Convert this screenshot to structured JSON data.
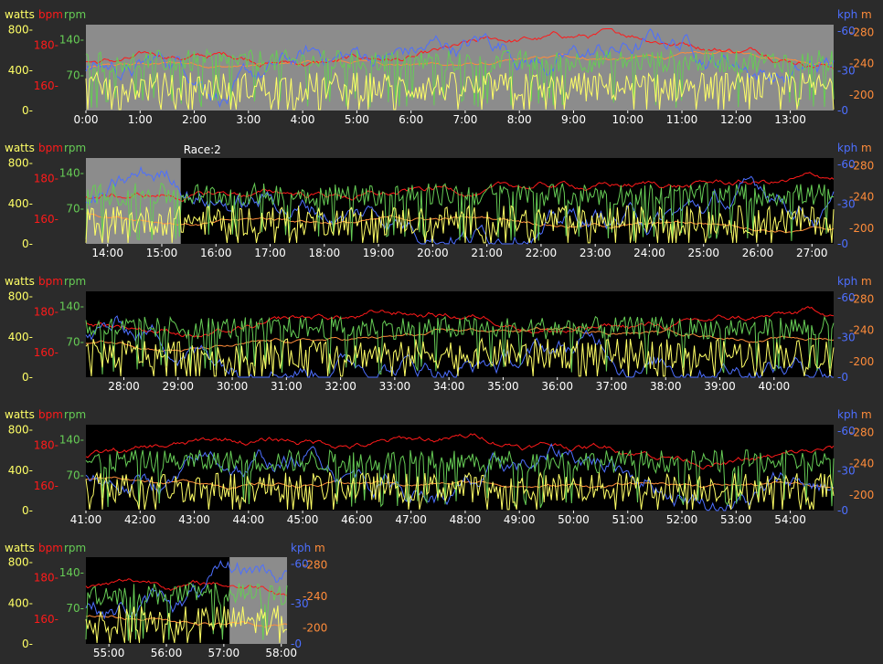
{
  "axis_headers": {
    "watts": "watts",
    "bpm": "bpm",
    "rpm": "rpm",
    "kph": "kph",
    "m": "m"
  },
  "left_ticks": {
    "watts": [
      "800-",
      "400-",
      "0-"
    ],
    "bpm": [
      "180-",
      "160-"
    ],
    "rpm": [
      "140-",
      "70-"
    ]
  },
  "right_ticks": {
    "kph": [
      "-60",
      "-30",
      "-0"
    ],
    "m": [
      "-280",
      "-240",
      "-200"
    ]
  },
  "colors": {
    "watts": "#ffff66",
    "bpm": "#ff1a1a",
    "rpm": "#66cc55",
    "kph": "#4d6fff",
    "m": "#ff8c3a",
    "background": "#2b2b2b",
    "plot_black": "#000000",
    "plot_gray": "#8c8c8c",
    "text": "#ffffff"
  },
  "chart_data": [
    {
      "type": "line",
      "panel": 1,
      "title": "",
      "x_range_min": [
        0,
        13.8
      ],
      "x_tick_labels": [
        "0:00",
        "1:00",
        "2:00",
        "3:00",
        "4:00",
        "5:00",
        "6:00",
        "7:00",
        "8:00",
        "9:00",
        "10:00",
        "11:00",
        "12:00",
        "13:00"
      ],
      "x_tick_values": [
        0,
        1,
        2,
        3,
        4,
        5,
        6,
        7,
        8,
        9,
        10,
        11,
        12,
        13
      ],
      "annotation": "",
      "series_names": [
        "watts",
        "bpm",
        "rpm",
        "kph",
        "m"
      ],
      "shaded_ranges": [
        [
          0,
          13.8
        ]
      ],
      "ylim": {
        "watts": [
          0,
          850
        ],
        "bpm": [
          148,
          190
        ],
        "rpm": [
          0,
          170
        ],
        "kph": [
          0,
          65
        ],
        "m": [
          180,
          290
        ]
      }
    },
    {
      "type": "line",
      "panel": 2,
      "title": "",
      "x_range_min": [
        13.6,
        27.4
      ],
      "x_tick_labels": [
        "14:00",
        "15:00",
        "16:00",
        "17:00",
        "18:00",
        "19:00",
        "20:00",
        "21:00",
        "22:00",
        "23:00",
        "24:00",
        "25:00",
        "26:00",
        "27:00"
      ],
      "x_tick_values": [
        14,
        15,
        16,
        17,
        18,
        19,
        20,
        21,
        22,
        23,
        24,
        25,
        26,
        27
      ],
      "annotation": "Race:2",
      "annotation_at_min": 15.4,
      "series_names": [
        "watts",
        "bpm",
        "rpm",
        "kph",
        "m"
      ],
      "shaded_ranges": [
        [
          13.6,
          15.35
        ]
      ],
      "ylim": {
        "watts": [
          0,
          850
        ],
        "bpm": [
          148,
          190
        ],
        "rpm": [
          0,
          170
        ],
        "kph": [
          0,
          65
        ],
        "m": [
          180,
          290
        ]
      }
    },
    {
      "type": "line",
      "panel": 3,
      "title": "",
      "x_range_min": [
        27.3,
        41.1
      ],
      "x_tick_labels": [
        "28:00",
        "29:00",
        "30:00",
        "31:00",
        "32:00",
        "33:00",
        "34:00",
        "35:00",
        "36:00",
        "37:00",
        "38:00",
        "39:00",
        "40:00"
      ],
      "x_tick_values": [
        28,
        29,
        30,
        31,
        32,
        33,
        34,
        35,
        36,
        37,
        38,
        39,
        40
      ],
      "annotation": "",
      "series_names": [
        "watts",
        "bpm",
        "rpm",
        "kph",
        "m"
      ],
      "shaded_ranges": [],
      "ylim": {
        "watts": [
          0,
          850
        ],
        "bpm": [
          148,
          190
        ],
        "rpm": [
          0,
          170
        ],
        "kph": [
          0,
          65
        ],
        "m": [
          180,
          290
        ]
      }
    },
    {
      "type": "line",
      "panel": 4,
      "title": "",
      "x_range_min": [
        41.0,
        54.8
      ],
      "x_tick_labels": [
        "41:00",
        "42:00",
        "43:00",
        "44:00",
        "45:00",
        "46:00",
        "47:00",
        "48:00",
        "49:00",
        "50:00",
        "51:00",
        "52:00",
        "53:00",
        "54:00"
      ],
      "x_tick_values": [
        41,
        42,
        43,
        44,
        45,
        46,
        47,
        48,
        49,
        50,
        51,
        52,
        53,
        54
      ],
      "annotation": "",
      "series_names": [
        "watts",
        "bpm",
        "rpm",
        "kph",
        "m"
      ],
      "shaded_ranges": [],
      "ylim": {
        "watts": [
          0,
          850
        ],
        "bpm": [
          148,
          190
        ],
        "rpm": [
          0,
          170
        ],
        "kph": [
          0,
          65
        ],
        "m": [
          180,
          290
        ]
      }
    },
    {
      "type": "line",
      "panel": 5,
      "title": "",
      "x_range_min": [
        54.6,
        58.1
      ],
      "x_tick_labels": [
        "55:00",
        "56:00",
        "57:00",
        "58:00"
      ],
      "x_tick_values": [
        55,
        56,
        57,
        58
      ],
      "annotation": "",
      "series_names": [
        "watts",
        "bpm",
        "rpm",
        "kph",
        "m"
      ],
      "shaded_ranges": [
        [
          57.1,
          58.1
        ]
      ],
      "ylim": {
        "watts": [
          0,
          850
        ],
        "bpm": [
          148,
          190
        ],
        "rpm": [
          0,
          170
        ],
        "kph": [
          0,
          65
        ],
        "m": [
          180,
          290
        ]
      }
    }
  ]
}
